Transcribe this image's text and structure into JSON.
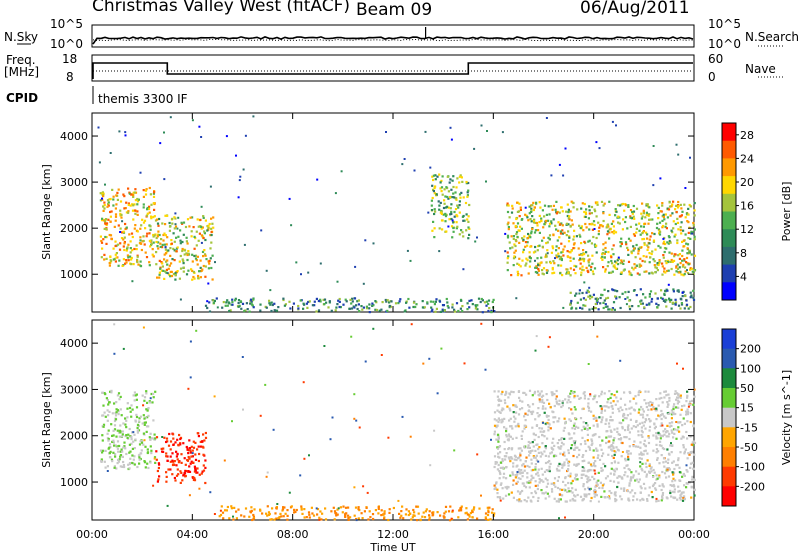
{
  "header": {
    "station": "Christmas Valley West (fitACF)",
    "beam": "Beam 09",
    "date": "06/Aug/2011",
    "cpid_label": "CPID",
    "cpid_value": "themis 3300 IF"
  },
  "noise_panel": {
    "left_label": "N.Sky",
    "left_ticks": [
      "10^5",
      "10^0"
    ],
    "right_label": "N.Search",
    "right_ticks": [
      "10^5",
      "10^0"
    ]
  },
  "freq_panel": {
    "left_label_line1": "Freq.",
    "left_label_line2": "[MHz]",
    "left_ticks": [
      "18",
      "8"
    ],
    "right_label": "Nave",
    "right_ticks": [
      "60",
      "0"
    ]
  },
  "colors": {
    "power_scale": [
      "#0000ff",
      "#1e3fb0",
      "#2e6e6e",
      "#2e8b57",
      "#4caf50",
      "#a4c43c",
      "#ffd700",
      "#ff9900",
      "#ff5a00",
      "#ff0000"
    ],
    "velocity_scale": [
      "#1a3fd6",
      "#2a5ab0",
      "#1c8a3c",
      "#66cc33",
      "#c8c8c8",
      "#ffa500",
      "#ff7f00",
      "#ff3a00",
      "#ff0000"
    ]
  },
  "chart_data": [
    {
      "type": "heatmap",
      "name": "Power",
      "xlabel": "",
      "ylabel": "Slant Range [km]",
      "xlim": [
        "00:00",
        "24:00"
      ],
      "ylim": [
        180,
        4500
      ],
      "yticks": [
        "1000",
        "2000",
        "3000",
        "4000"
      ],
      "colorbar": {
        "label": "Power [dB]",
        "ticks": [
          "4",
          "8",
          "12",
          "16",
          "20",
          "24",
          "28"
        ],
        "range": [
          0,
          30
        ]
      },
      "features": [
        {
          "time_start": 0.3,
          "time_end": 2.5,
          "range_start": 1200,
          "range_end": 2900,
          "level": 20
        },
        {
          "time_start": 2.5,
          "time_end": 4.8,
          "range_start": 900,
          "range_end": 2300,
          "level": 18
        },
        {
          "time_start": 4.5,
          "time_end": 16.0,
          "range_start": 200,
          "range_end": 500,
          "level": 10
        },
        {
          "time_start": 13.5,
          "time_end": 15.0,
          "range_start": 1800,
          "range_end": 3200,
          "level": 14
        },
        {
          "time_start": 16.5,
          "time_end": 24.0,
          "range_start": 1000,
          "range_end": 2600,
          "level": 18
        },
        {
          "time_start": 19.0,
          "time_end": 24.0,
          "range_start": 250,
          "range_end": 700,
          "level": 10
        }
      ]
    },
    {
      "type": "heatmap",
      "name": "Velocity",
      "xlabel": "Time UT",
      "ylabel": "Slant Range [km]",
      "xlim": [
        "00:00",
        "24:00"
      ],
      "ylim": [
        180,
        4500
      ],
      "xticks": [
        "00:00",
        "04:00",
        "08:00",
        "12:00",
        "16:00",
        "20:00",
        "00:00"
      ],
      "yticks": [
        "1000",
        "2000",
        "3000",
        "4000"
      ],
      "colorbar": {
        "label": "Velocity [m s^-1]",
        "ticks": [
          "200",
          "100",
          "50",
          "15",
          "-15",
          "-50",
          "-100",
          "-200"
        ],
        "range": [
          -250,
          250
        ]
      },
      "features": [
        {
          "time_start": 0.3,
          "time_end": 2.5,
          "range_start": 1300,
          "range_end": 3000,
          "level": 15
        },
        {
          "time_start": 2.5,
          "time_end": 4.5,
          "range_start": 1000,
          "range_end": 2100,
          "level": -200
        },
        {
          "time_start": 5.0,
          "time_end": 16.0,
          "range_start": 200,
          "range_end": 500,
          "level": -50
        },
        {
          "time_start": 16.0,
          "time_end": 24.0,
          "range_start": 600,
          "range_end": 3000,
          "level": 0
        }
      ]
    }
  ]
}
